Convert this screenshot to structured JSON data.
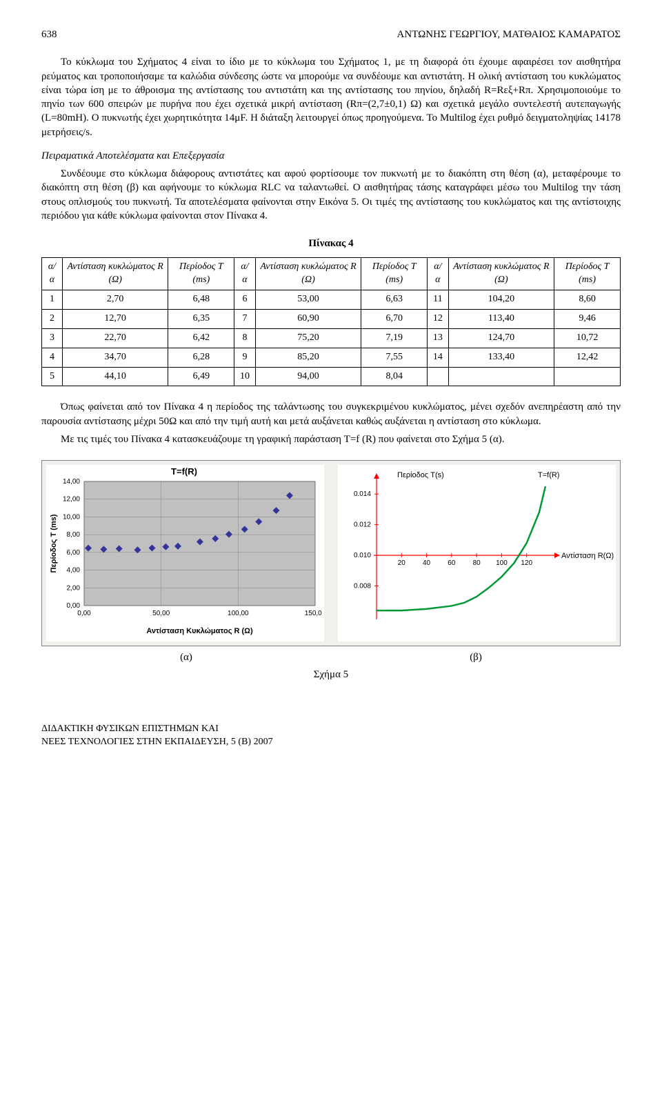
{
  "header": {
    "page_number": "638",
    "authors": "ΑΝΤΩΝΗΣ ΓΕΩΡΓΙΟΥ, ΜΑΤΘΑΙΟΣ ΚΑΜΑΡΑΤΟΣ"
  },
  "para1": "Το κύκλωμα του Σχήματος 4 είναι το ίδιο με το κύκλωμα του Σχήματος 1, με τη διαφορά ότι έχουμε αφαιρέσει τον αισθητήρα ρεύματος και τροποποιήσαμε τα καλώδια σύνδεσης ώστε να μπορούμε να συνδέουμε και αντιστάτη. Η ολική αντίσταση του κυκλώματος είναι τώρα ίση με το άθροισμα της αντίστασης του αντιστάτη και της αντίστασης του πηνίου, δηλαδή R=Rεξ+Rπ. Χρησιμοποιούμε το πηνίο των 600 σπειρών με πυρήνα που έχει σχετικά μικρή αντίσταση (Rπ=(2,7±0,1) Ω) και σχετικά μεγάλο συντελεστή αυτεπαγωγής (L=80mH). Ο πυκνωτής έχει χωρητικότητα 14μF. Η διάταξη λειτουργεί όπως προηγούμενα. Το Multilog έχει ρυθμό δειγματοληψίας 14178 μετρήσεις/s.",
  "section2_title": "Πειραματικά Αποτελέσματα και Επεξεργασία",
  "para2": "Συνδέουμε στο κύκλωμα διάφορους αντιστάτες και αφού φορτίσουμε τον πυκνωτή με το διακόπτη στη θέση (α), μεταφέρουμε το διακόπτη στη θέση (β) και αφήνουμε το κύκλωμα RLC να ταλαντωθεί. Ο αισθητήρας τάσης καταγράφει μέσω του Multilog την τάση στους οπλισμούς του πυκνωτή. Τα αποτελέσματα φαίνονται στην Εικόνα 5. Οι τιμές της αντίστασης του κυκλώματος και της αντίστοιχης περιόδου για κάθε κύκλωμα φαίνονται στον Πίνακα 4.",
  "table4": {
    "caption": "Πίνακας 4",
    "headers": {
      "aa": "α/α",
      "R": "Αντίσταση κυκλώματος R (Ω)",
      "T": "Περίοδος Τ (ms)",
      "T2": "Περίοδος T (ms)"
    },
    "rows": [
      [
        "1",
        "2,70",
        "6,48",
        "6",
        "53,00",
        "6,63",
        "11",
        "104,20",
        "8,60"
      ],
      [
        "2",
        "12,70",
        "6,35",
        "7",
        "60,90",
        "6,70",
        "12",
        "113,40",
        "9,46"
      ],
      [
        "3",
        "22,70",
        "6,42",
        "8",
        "75,20",
        "7,19",
        "13",
        "124,70",
        "10,72"
      ],
      [
        "4",
        "34,70",
        "6,28",
        "9",
        "85,20",
        "7,55",
        "14",
        "133,40",
        "12,42"
      ],
      [
        "5",
        "44,10",
        "6,49",
        "10",
        "94,00",
        "8,04",
        "",
        "",
        ""
      ]
    ]
  },
  "para3": "Όπως φαίνεται από τον Πίνακα 4 η περίοδος της ταλάντωσης του συγκεκριμένου κυκλώματος, μένει σχεδόν ανεπηρέαστη από την παρουσία αντίστασης μέχρι 50Ω και από την τιμή αυτή και μετά αυξάνεται καθώς αυξάνεται η αντίσταση στο κύκλωμα.",
  "para4": "Με τις τιμές του Πίνακα 4 κατασκευάζουμε τη γραφική παράσταση T=f (R) που φαίνεται στο Σχήμα 5 (α).",
  "chart_left": {
    "type": "scatter",
    "title": "T=f(R)",
    "xlabel": "Αντίσταση Κυκλώματος R (Ω)",
    "ylabel": "Περίοδος Τ (ms)",
    "xlim": [
      0,
      150
    ],
    "xtick_step": 50,
    "ylim": [
      0,
      14
    ],
    "ytick_step": 2,
    "xticks": [
      "0,00",
      "50,00",
      "100,00",
      "150,00"
    ],
    "yticks": [
      "0,00",
      "2,00",
      "4,00",
      "6,00",
      "8,00",
      "10,00",
      "12,00",
      "14,00"
    ],
    "grid_color": "#808080",
    "background_color": "#c0c0c0",
    "marker_color": "#333399",
    "marker_size": 5,
    "points": [
      [
        2.7,
        6.48
      ],
      [
        12.7,
        6.35
      ],
      [
        22.7,
        6.42
      ],
      [
        34.7,
        6.28
      ],
      [
        44.1,
        6.49
      ],
      [
        53.0,
        6.63
      ],
      [
        60.9,
        6.7
      ],
      [
        75.2,
        7.19
      ],
      [
        85.2,
        7.55
      ],
      [
        94.0,
        8.04
      ],
      [
        104.2,
        8.6
      ],
      [
        113.4,
        9.46
      ],
      [
        124.7,
        10.72
      ],
      [
        133.4,
        12.42
      ]
    ]
  },
  "chart_right": {
    "type": "line",
    "title": "T=f(R)",
    "series_label": "Περίοδος T(s)",
    "xlabel": "Αντίσταση R(Ω)",
    "xlim": [
      0,
      140
    ],
    "xtick_step": 20,
    "xticks": [
      "20",
      "40",
      "60",
      "80",
      "100",
      "120"
    ],
    "ylim": [
      0.006,
      0.015
    ],
    "ytick_step": 0.002,
    "yticks": [
      "0.008",
      "0.010",
      "0.012",
      "0.014"
    ],
    "axis_color": "#ff0000",
    "grid_color": "#ff0000",
    "line_color": "#009933",
    "line_width": 2.5,
    "background_color": "#ffffff",
    "points": [
      [
        0,
        0.0064
      ],
      [
        20,
        0.0064
      ],
      [
        40,
        0.0065
      ],
      [
        60,
        0.0067
      ],
      [
        70,
        0.0069
      ],
      [
        80,
        0.0073
      ],
      [
        90,
        0.0079
      ],
      [
        100,
        0.0086
      ],
      [
        110,
        0.0095
      ],
      [
        120,
        0.0108
      ],
      [
        130,
        0.0128
      ],
      [
        135,
        0.0145
      ]
    ]
  },
  "ab_labels": {
    "a": "(α)",
    "b": "(β)"
  },
  "fig_caption": "Σχήμα 5",
  "footer_line1": "ΔΙΔΑΚΤΙΚΗ ΦΥΣΙΚΩΝ ΕΠΙΣΤΗΜΩΝ ΚΑΙ",
  "footer_line2": "ΝΕΕΣ ΤΕΧΝΟΛΟΓΙΕΣ ΣΤΗΝ ΕΚΠΑΙΔΕΥΣΗ, 5 (Β) 2007"
}
